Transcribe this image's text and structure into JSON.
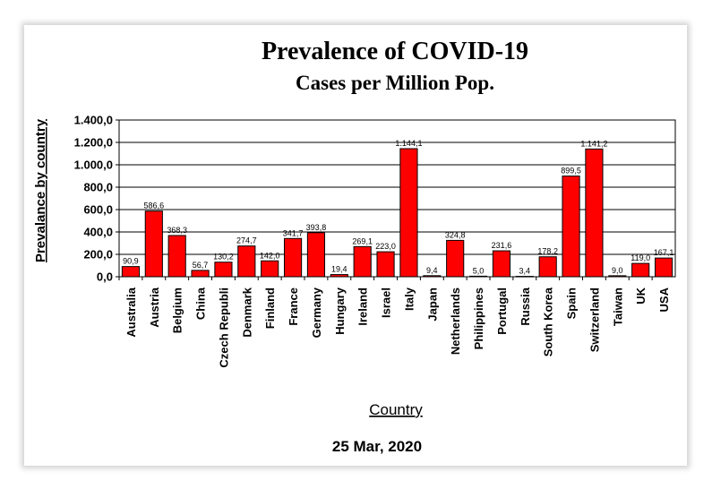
{
  "chart_data": {
    "type": "bar",
    "title": "Prevalence of COVID-19",
    "subtitle": "Cases per Million Pop.",
    "xlabel": "Country",
    "ylabel": "Prevalance by country",
    "footer": "25 Mar, 2020",
    "ylim": [
      0,
      1400
    ],
    "yticks": [
      {
        "value": 0,
        "label": "0,0"
      },
      {
        "value": 200,
        "label": "200,0"
      },
      {
        "value": 400,
        "label": "400,0"
      },
      {
        "value": 600,
        "label": "600,0"
      },
      {
        "value": 800,
        "label": "800,0"
      },
      {
        "value": 1000,
        "label": "1.000,0"
      },
      {
        "value": 1200,
        "label": "1.200,0"
      },
      {
        "value": 1400,
        "label": "1.400,0"
      }
    ],
    "grid": true,
    "bar_color": "#ff0000",
    "categories": [
      "Australia",
      "Austria",
      "Belgium",
      "China",
      "Czech Republi",
      "Denmark",
      "Finland",
      "France",
      "Germany",
      "Hungary",
      "Ireland",
      "Israel",
      "Italy",
      "Japan",
      "Netherlands",
      "Philippines",
      "Portugal",
      "Russia",
      "South Korea",
      "Spain",
      "Switzerland",
      "Taiwan",
      "UK",
      "USA"
    ],
    "values": [
      90.9,
      586.6,
      368.3,
      56.7,
      130.2,
      274.7,
      142.0,
      341.7,
      393.8,
      19.4,
      269.1,
      223.0,
      1144.1,
      9.4,
      324.8,
      5.0,
      231.6,
      3.4,
      178.2,
      899.5,
      1141.2,
      9.0,
      119.0,
      167.1
    ],
    "data_labels": [
      "90,9",
      "586,6",
      "368,3",
      "56,7",
      "130,2",
      "274,7",
      "142,0",
      "341,7",
      "393,8",
      "19,4",
      "269,1",
      "223,0",
      "1.144,1",
      "9,4",
      "324,8",
      "5,0",
      "231,6",
      "3,4",
      "178,2",
      "899,5",
      "1.141,2",
      "9,0",
      "119,0",
      "167,1"
    ]
  }
}
